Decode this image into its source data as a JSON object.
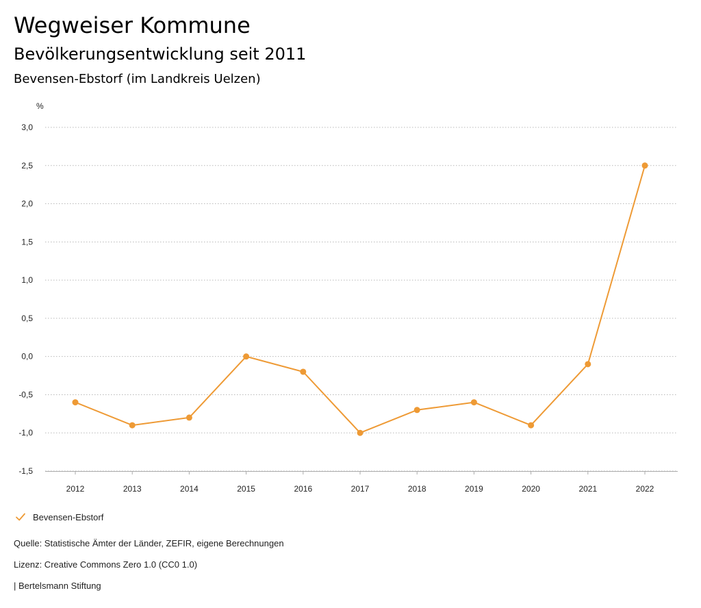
{
  "header": {
    "title": "Wegweiser Kommune",
    "subtitle": "Bevölkerungsentwicklung seit 2011",
    "region": "Bevensen-Ebstorf (im Landkreis Uelzen)"
  },
  "chart_data": {
    "type": "line",
    "title": "Bevölkerungsentwicklung seit 2011",
    "xlabel": "",
    "ylabel": "%",
    "x": [
      "2012",
      "2013",
      "2014",
      "2015",
      "2016",
      "2017",
      "2018",
      "2019",
      "2020",
      "2021",
      "2022"
    ],
    "series": [
      {
        "name": "Bevensen-Ebstorf",
        "color": "#EE9A35",
        "values": [
          -0.6,
          -0.9,
          -0.8,
          0.0,
          -0.2,
          -1.0,
          -0.7,
          -0.6,
          -0.9,
          -0.1,
          2.5
        ]
      }
    ],
    "ylim": [
      -1.5,
      3.0
    ],
    "yticks": [
      -1.5,
      -1.0,
      -0.5,
      0.0,
      0.5,
      1.0,
      1.5,
      2.0,
      2.5,
      3.0
    ],
    "ytick_labels": [
      "-1,5",
      "-1,0",
      "-0,5",
      "0,0",
      "0,5",
      "1,0",
      "1,5",
      "2,0",
      "2,5",
      "3,0"
    ],
    "grid": true,
    "legend": "bottom-left"
  },
  "legend": {
    "label": "Bevensen-Ebstorf"
  },
  "footer": {
    "source": "Quelle: Statistische Ämter der Länder, ZEFIR, eigene Berechnungen",
    "license": "Lizenz: Creative Commons Zero 1.0 (CC0 1.0)",
    "publisher": "| Bertelsmann Stiftung"
  }
}
